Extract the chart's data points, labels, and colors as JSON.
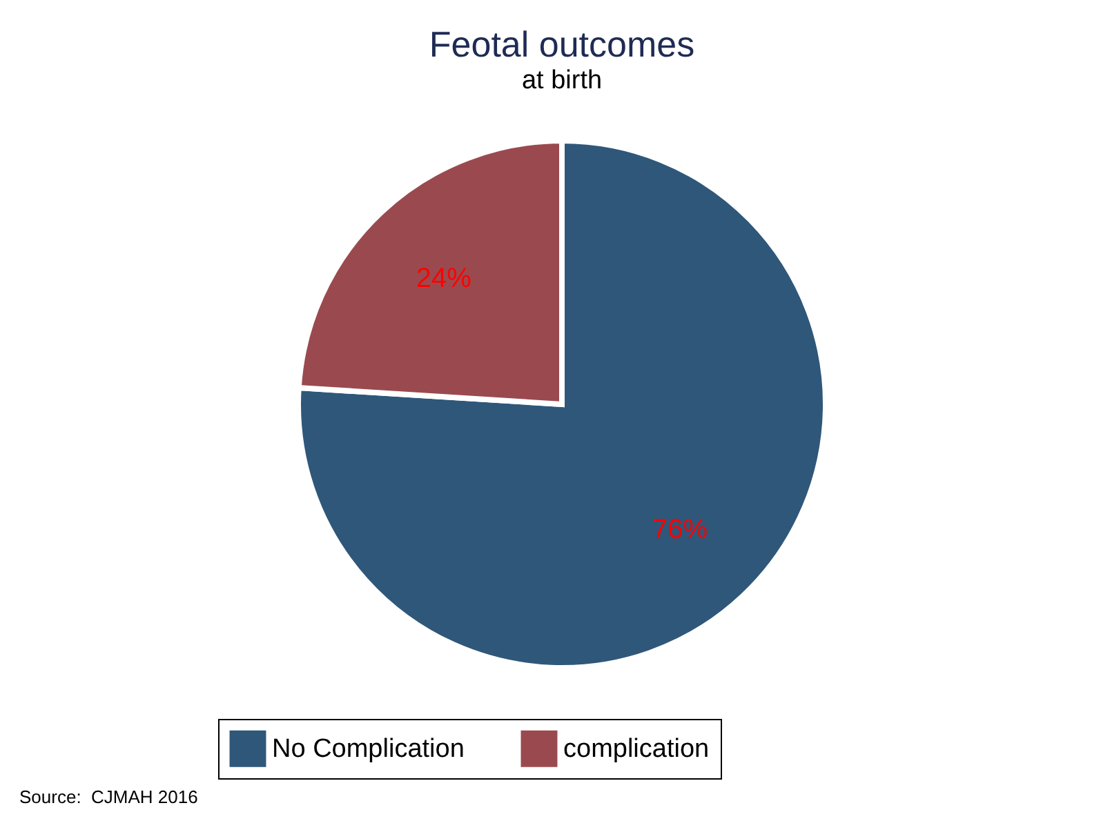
{
  "chart_data": {
    "type": "pie",
    "title": "Feotal outcomes",
    "subtitle": "at birth",
    "categories": [
      "No Complication",
      "complication"
    ],
    "values": [
      76,
      24
    ],
    "colors": [
      "#2f5779",
      "#9a4a4f"
    ],
    "value_labels": [
      "76%",
      "24%"
    ],
    "legend": "bottom",
    "annotations": [
      "Source:  CJMAH 2016"
    ]
  }
}
